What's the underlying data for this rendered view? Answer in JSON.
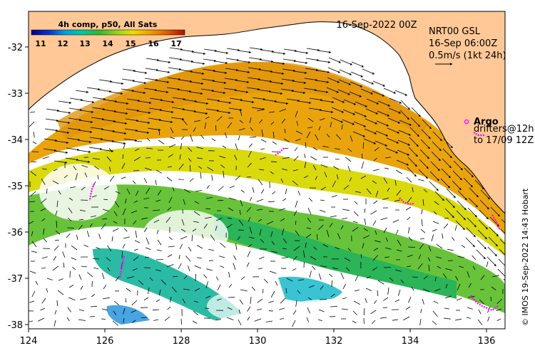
{
  "legend": {
    "title": "4h comp, p50, All Sats",
    "ticks": [
      "11",
      "12",
      "13",
      "14",
      "15",
      "16",
      "17"
    ]
  },
  "header": {
    "date": "16-Sep-2022 00Z",
    "product": "NRT00 GSL",
    "time": "16-Sep 06:00Z",
    "scale": "0.5m/s (1kt 24h)"
  },
  "argo": {
    "label": "Argo",
    "drifters_line1": "drifters@12h",
    "drifters_line2": "to 17/09 12Z"
  },
  "credit": "© IMOS 19-Sep-2022 14:43 Hobart",
  "axes": {
    "x_ticks": [
      "124",
      "126",
      "128",
      "130",
      "132",
      "134",
      "136"
    ],
    "y_ticks": [
      "-32",
      "-33",
      "-34",
      "-35",
      "-36",
      "-37",
      "-38"
    ]
  },
  "colors": {
    "land": "#ffc896",
    "ocean": "#ffffff",
    "drifter": "#ff00ff",
    "colorbar": [
      "#00008c",
      "#0030d0",
      "#00a0e0",
      "#00c8a0",
      "#30b830",
      "#90d020",
      "#e8e000",
      "#f0a000",
      "#e06000",
      "#b01000"
    ]
  }
}
